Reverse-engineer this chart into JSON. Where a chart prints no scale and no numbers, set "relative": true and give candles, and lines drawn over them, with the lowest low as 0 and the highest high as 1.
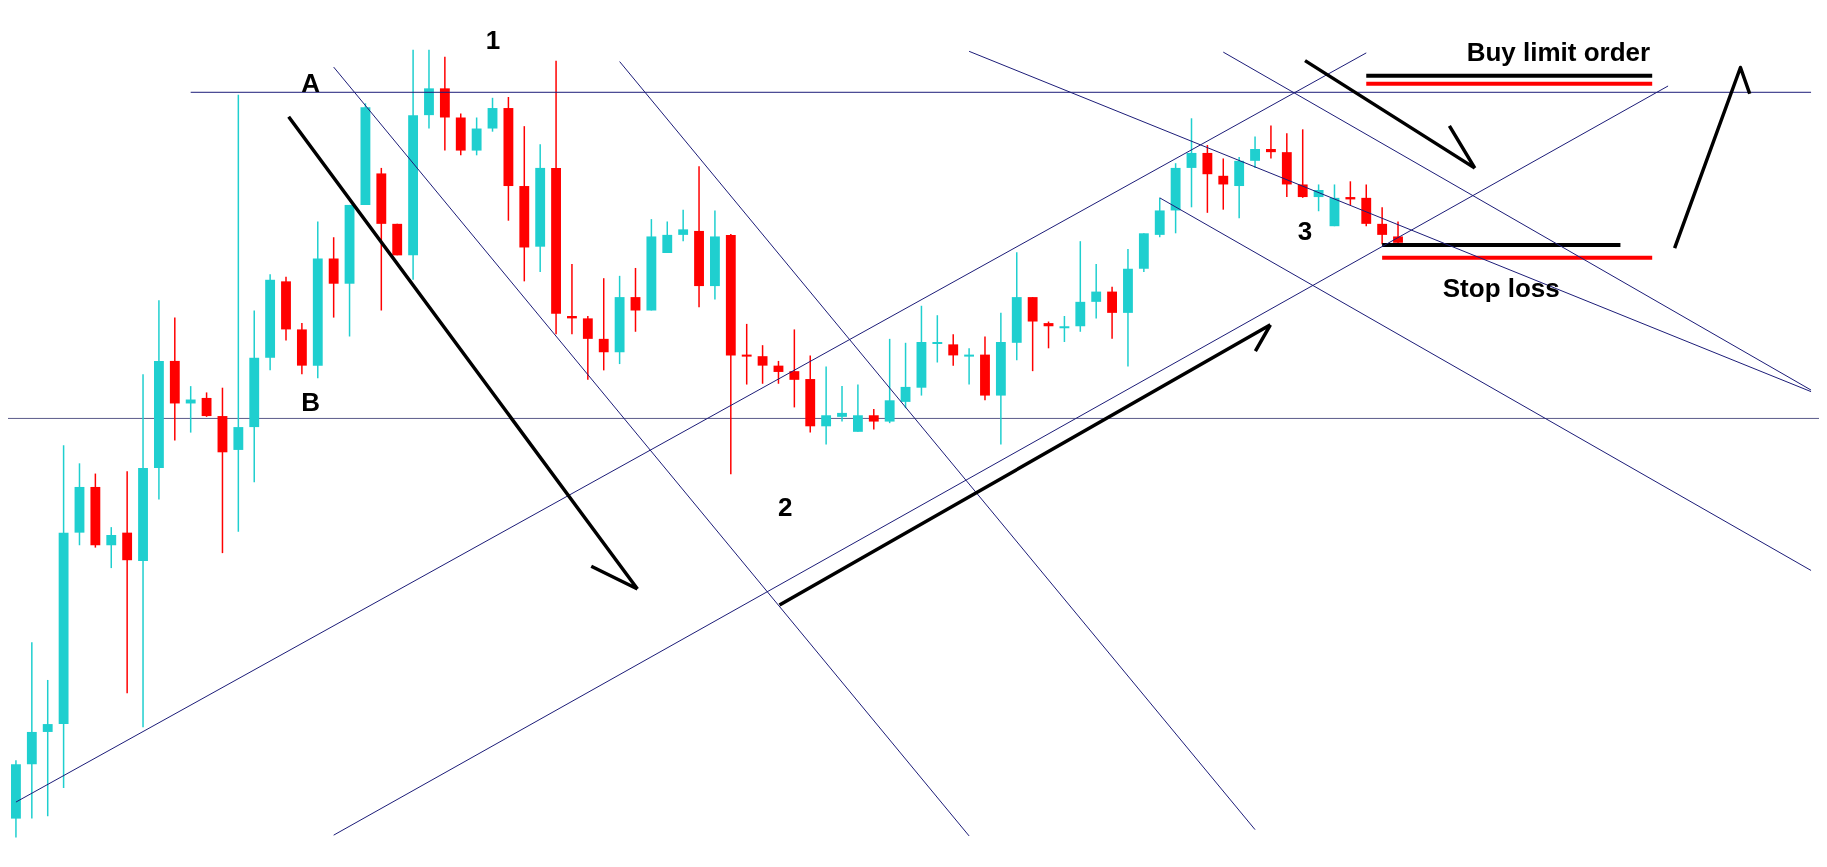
{
  "chart_data": {
    "type": "candlestick",
    "relative": true,
    "categories": [
      null,
      null,
      null,
      null,
      null,
      null,
      null,
      null,
      null,
      null,
      null,
      null,
      null,
      null,
      null,
      null,
      null,
      null,
      null,
      null,
      null,
      null,
      null,
      null,
      null,
      null,
      null,
      null,
      null,
      null,
      null,
      null,
      null,
      null,
      null,
      null,
      null,
      null,
      null,
      null,
      null,
      null,
      null,
      null,
      null,
      null,
      null,
      null,
      null,
      null,
      null,
      null,
      null,
      null,
      null,
      null,
      null,
      null,
      null,
      null,
      null,
      null,
      null,
      null,
      null,
      null,
      null,
      null,
      null,
      null,
      null,
      null,
      null,
      null,
      null,
      null,
      null,
      null,
      null,
      null,
      null,
      null,
      null,
      null,
      null,
      null,
      null,
      null,
      null,
      null,
      null,
      null,
      null,
      null,
      null,
      null,
      null,
      null,
      null,
      null,
      null,
      null,
      null,
      null,
      null,
      null,
      null,
      null,
      null,
      null,
      null,
      null,
      null,
      null
    ],
    "ohlc": [
      [
        0.024,
        0.098,
        0,
        0.093
      ],
      [
        0.093,
        0.248,
        0.024,
        0.134
      ],
      [
        0.134,
        0.2,
        0.027,
        0.144
      ],
      [
        0.144,
        0.498,
        0.063,
        0.387
      ],
      [
        0.387,
        0.475,
        0.371,
        0.445
      ],
      [
        0.445,
        0.462,
        0.368,
        0.371
      ],
      [
        0.371,
        0.394,
        0.342,
        0.384
      ],
      [
        0.387,
        0.465,
        0.183,
        0.352
      ],
      [
        0.351,
        0.588,
        0.14,
        0.469
      ],
      [
        0.469,
        0.682,
        0.429,
        0.605
      ],
      [
        0.605,
        0.66,
        0.504,
        0.551
      ],
      [
        0.551,
        0.573,
        0.514,
        0.556
      ],
      [
        0.558,
        0.565,
        0.534,
        0.535
      ],
      [
        0.535,
        0.571,
        0.361,
        0.489
      ],
      [
        0.492,
        0.943,
        0.388,
        0.521
      ],
      [
        0.521,
        0.669,
        0.451,
        0.609
      ],
      [
        0.609,
        0.715,
        0.593,
        0.708
      ],
      [
        0.706,
        0.712,
        0.631,
        0.645
      ],
      [
        0.645,
        0.653,
        0.588,
        0.599
      ],
      [
        0.599,
        0.782,
        0.583,
        0.735
      ],
      [
        0.735,
        0.762,
        0.66,
        0.703
      ],
      [
        0.703,
        0.803,
        0.636,
        0.803
      ],
      [
        0.803,
        0.932,
        0.803,
        0.927
      ],
      [
        0.843,
        0.85,
        0.669,
        0.779
      ],
      [
        0.779,
        0.779,
        0.739,
        0.739
      ],
      [
        0.739,
        1,
        0.708,
        0.917
      ],
      [
        0.917,
        1,
        0.9,
        0.951
      ],
      [
        0.951,
        0.991,
        0.872,
        0.914
      ],
      [
        0.914,
        0.919,
        0.866,
        0.872
      ],
      [
        0.872,
        0.914,
        0.866,
        0.9
      ],
      [
        0.9,
        0.939,
        0.896,
        0.926
      ],
      [
        0.926,
        0.94,
        0.783,
        0.827
      ],
      [
        0.827,
        0.903,
        0.706,
        0.749
      ],
      [
        0.75,
        0.88,
        0.718,
        0.85
      ],
      [
        0.85,
        0.986,
        0.639,
        0.665
      ],
      [
        0.662,
        0.728,
        0.639,
        0.659
      ],
      [
        0.659,
        0.662,
        0.581,
        0.633
      ],
      [
        0.633,
        0.71,
        0.593,
        0.616
      ],
      [
        0.616,
        0.713,
        0.601,
        0.686
      ],
      [
        0.686,
        0.723,
        0.642,
        0.669
      ],
      [
        0.669,
        0.785,
        0.669,
        0.763
      ],
      [
        0.742,
        0.782,
        0.742,
        0.765
      ],
      [
        0.765,
        0.797,
        0.757,
        0.772
      ],
      [
        0.77,
        0.852,
        0.673,
        0.7
      ],
      [
        0.7,
        0.796,
        0.683,
        0.763
      ],
      [
        0.765,
        0.766,
        0.461,
        0.612
      ],
      [
        0.613,
        0.652,
        0.575,
        0.612
      ],
      [
        0.611,
        0.625,
        0.576,
        0.599
      ],
      [
        0.599,
        0.605,
        0.576,
        0.591
      ],
      [
        0.592,
        0.645,
        0.546,
        0.581
      ],
      [
        0.582,
        0.612,
        0.514,
        0.522
      ],
      [
        0.522,
        0.598,
        0.499,
        0.536
      ],
      [
        0.534,
        0.573,
        0.528,
        0.539
      ],
      [
        0.515,
        0.575,
        0.515,
        0.536
      ],
      [
        0.536,
        0.544,
        0.518,
        0.528
      ],
      [
        0.528,
        0.633,
        0.526,
        0.555
      ],
      [
        0.553,
        0.628,
        0.545,
        0.572
      ],
      [
        0.571,
        0.675,
        0.561,
        0.629
      ],
      [
        0.628,
        0.663,
        0.603,
        0.629
      ],
      [
        0.626,
        0.639,
        0.599,
        0.612
      ],
      [
        0.611,
        0.621,
        0.575,
        0.613
      ],
      [
        0.613,
        0.636,
        0.555,
        0.561
      ],
      [
        0.561,
        0.666,
        0.499,
        0.629
      ],
      [
        0.628,
        0.743,
        0.606,
        0.686
      ],
      [
        0.686,
        0.686,
        0.592,
        0.655
      ],
      [
        0.653,
        0.655,
        0.621,
        0.649
      ],
      [
        0.648,
        0.662,
        0.629,
        0.649
      ],
      [
        0.649,
        0.757,
        0.642,
        0.68
      ],
      [
        0.68,
        0.728,
        0.659,
        0.693
      ],
      [
        0.693,
        0.699,
        0.633,
        0.666
      ],
      [
        0.666,
        0.747,
        0.598,
        0.722
      ],
      [
        0.722,
        0.767,
        0.718,
        0.767
      ],
      [
        0.765,
        0.812,
        0.762,
        0.796
      ],
      [
        0.796,
        0.856,
        0.767,
        0.85
      ],
      [
        0.85,
        0.913,
        0.8,
        0.869
      ],
      [
        0.869,
        0.879,
        0.793,
        0.842
      ],
      [
        0.84,
        0.862,
        0.797,
        0.829
      ],
      [
        0.827,
        0.864,
        0.786,
        0.859
      ],
      [
        0.859,
        0.89,
        0.85,
        0.874
      ],
      [
        0.874,
        0.904,
        0.862,
        0.87
      ],
      [
        0.87,
        0.894,
        0.813,
        0.829
      ],
      [
        0.829,
        0.899,
        0.812,
        0.813
      ],
      [
        0.813,
        0.829,
        0.795,
        0.822
      ],
      [
        0.776,
        0.829,
        0.776,
        0.812
      ],
      [
        0.813,
        0.833,
        0.803,
        0.81
      ],
      [
        0.812,
        0.829,
        0.776,
        0.779
      ],
      [
        0.779,
        0.8,
        0.753,
        0.765
      ],
      [
        0.763,
        0.782,
        0.753,
        0.755
      ],
      null,
      null,
      null,
      null,
      null,
      null,
      null,
      null,
      null,
      null,
      null,
      null,
      null,
      null,
      null,
      null,
      null,
      null,
      null,
      null,
      null,
      null,
      null,
      null,
      null,
      null
    ],
    "colors": [
      "#1fcfcf",
      "#1fcfcf",
      "#1fcfcf",
      "#1fcfcf",
      "#1fcfcf",
      "#ff0000",
      "#1fcfcf",
      "#ff0000",
      "#1fcfcf",
      "#1fcfcf",
      "#ff0000",
      "#1fcfcf",
      "#ff0000",
      "#ff0000",
      "#1fcfcf",
      "#1fcfcf",
      "#1fcfcf",
      "#ff0000",
      "#ff0000",
      "#1fcfcf",
      "#ff0000",
      "#1fcfcf",
      "#1fcfcf",
      "#ff0000",
      "#ff0000",
      "#1fcfcf",
      "#1fcfcf",
      "#ff0000",
      "#ff0000",
      "#1fcfcf",
      "#1fcfcf",
      "#ff0000",
      "#ff0000",
      "#1fcfcf",
      "#ff0000",
      "#ff0000",
      "#ff0000",
      "#ff0000",
      "#1fcfcf",
      "#ff0000",
      "#1fcfcf",
      "#1fcfcf",
      "#1fcfcf",
      "#ff0000",
      "#1fcfcf",
      "#ff0000",
      "#ff0000",
      "#ff0000",
      "#ff0000",
      "#ff0000",
      "#ff0000",
      "#1fcfcf",
      "#1fcfcf",
      "#1fcfcf",
      "#ff0000",
      "#1fcfcf",
      "#1fcfcf",
      "#1fcfcf",
      "#1fcfcf",
      "#ff0000",
      "#1fcfcf",
      "#ff0000",
      "#1fcfcf",
      "#1fcfcf",
      "#ff0000",
      "#ff0000",
      "#1fcfcf",
      "#1fcfcf",
      "#1fcfcf",
      "#ff0000",
      "#1fcfcf",
      "#1fcfcf",
      "#1fcfcf",
      "#1fcfcf",
      "#1fcfcf",
      "#ff0000",
      "#ff0000",
      "#1fcfcf",
      "#1fcfcf",
      "#ff0000",
      "#ff0000",
      "#ff0000",
      "#1fcfcf",
      "#1fcfcf",
      "#ff0000",
      "#ff0000",
      "#ff0000",
      "#ff0000",
      null,
      null,
      null,
      null,
      null,
      null,
      null,
      null,
      null,
      null,
      null,
      null,
      null,
      null,
      null,
      null,
      null,
      null,
      null,
      null,
      null,
      null,
      null,
      null,
      null,
      null
    ],
    "ref_lines": [
      {
        "axis": "y",
        "value": 0.532,
        "color": "#5a5a8a"
      }
    ],
    "series": [
      {
        "type": "line",
        "color": "#1c1c78",
        "values": [
          null,
          null,
          null,
          null,
          null,
          null,
          null,
          null,
          null,
          null,
          null,
          0.946,
          null,
          null,
          null,
          null,
          null,
          null,
          null,
          null,
          null,
          null,
          null,
          null,
          null,
          null,
          null,
          null,
          null,
          null,
          null,
          null,
          null,
          null,
          null,
          null,
          null,
          null,
          null,
          null,
          null,
          null,
          null,
          null,
          null,
          null,
          null,
          null,
          null,
          null,
          null,
          null,
          null,
          null,
          null,
          null,
          null,
          null,
          null,
          null,
          null,
          null,
          null,
          null,
          null,
          null,
          null,
          null,
          null,
          null,
          null,
          null,
          null,
          null,
          null,
          null,
          null,
          null,
          null,
          null,
          null,
          null,
          null,
          null,
          null,
          null,
          null,
          null,
          null,
          null,
          null,
          null,
          null,
          null,
          null,
          null,
          null,
          null,
          null,
          null,
          null,
          null,
          null,
          null,
          null,
          null,
          null,
          null,
          null,
          null,
          null,
          null,
          null,
          0.946
        ]
      },
      {
        "type": "line",
        "color": "#1c1c78",
        "values": [
          0.045,
          null,
          null,
          null,
          null,
          null,
          null,
          null,
          null,
          null,
          null,
          null,
          null,
          null,
          null,
          null,
          null,
          null,
          null,
          null,
          null,
          null,
          null,
          null,
          null,
          null,
          null,
          null,
          null,
          null,
          null,
          null,
          null,
          null,
          null,
          null,
          null,
          null,
          null,
          null,
          null,
          null,
          null,
          null,
          null,
          null,
          null,
          null,
          null,
          null,
          null,
          null,
          null,
          null,
          null,
          null,
          null,
          null,
          null,
          null,
          null,
          null,
          null,
          null,
          null,
          null,
          null,
          null,
          null,
          null,
          null,
          null,
          null,
          null,
          null,
          null,
          null,
          null,
          null,
          null,
          null,
          null,
          null,
          null,
          null,
          0.996,
          null,
          null,
          null,
          null,
          null,
          null,
          null,
          null,
          null,
          null,
          null,
          null,
          null,
          null,
          null,
          null,
          null,
          null,
          null,
          null,
          null,
          null,
          null,
          null,
          null,
          null,
          null,
          null
        ]
      },
      {
        "type": "line",
        "color": "#1c1c78",
        "values": [
          null,
          null,
          null,
          null,
          null,
          null,
          null,
          null,
          null,
          null,
          null,
          null,
          null,
          null,
          null,
          null,
          null,
          null,
          null,
          null,
          0.003,
          null,
          null,
          null,
          null,
          null,
          null,
          null,
          null,
          null,
          null,
          null,
          null,
          null,
          null,
          null,
          null,
          null,
          null,
          null,
          null,
          null,
          null,
          null,
          null,
          null,
          null,
          null,
          null,
          null,
          null,
          null,
          null,
          null,
          null,
          null,
          null,
          null,
          null,
          null,
          null,
          null,
          null,
          null,
          null,
          null,
          null,
          null,
          null,
          null,
          null,
          null,
          null,
          null,
          null,
          null,
          null,
          null,
          null,
          null,
          null,
          null,
          null,
          null,
          null,
          null,
          null,
          null,
          null,
          null,
          null,
          null,
          null,
          null,
          null,
          null,
          null,
          null,
          null,
          null,
          null,
          null,
          null,
          null,
          0.954,
          null,
          null,
          null,
          null,
          null,
          null,
          null,
          null,
          null
        ]
      },
      {
        "type": "line",
        "color": "#1c1c78",
        "values": [
          null,
          null,
          null,
          null,
          null,
          null,
          null,
          null,
          null,
          null,
          null,
          null,
          null,
          null,
          null,
          null,
          null,
          null,
          null,
          null,
          0.978,
          null,
          null,
          null,
          null,
          null,
          null,
          null,
          null,
          null,
          null,
          null,
          null,
          null,
          null,
          null,
          null,
          null,
          null,
          null,
          null,
          null,
          null,
          null,
          null,
          null,
          null,
          null,
          null,
          null,
          null,
          null,
          null,
          null,
          null,
          null,
          null,
          null,
          null,
          null,
          0.002,
          null,
          null,
          null,
          null,
          null,
          null,
          null,
          null,
          null,
          null,
          null,
          null,
          null,
          null,
          null,
          null,
          null,
          null,
          null,
          null,
          null,
          null,
          null,
          null,
          null,
          null,
          null,
          null,
          null,
          null,
          null,
          null,
          null,
          null,
          null,
          null,
          null,
          null,
          null,
          null,
          null,
          null,
          null,
          null,
          null,
          null,
          null,
          null,
          null,
          null,
          null,
          null,
          null
        ]
      },
      {
        "type": "line",
        "color": "#1c1c78",
        "values": [
          null,
          null,
          null,
          null,
          null,
          null,
          null,
          null,
          null,
          null,
          null,
          null,
          null,
          null,
          null,
          null,
          null,
          null,
          null,
          null,
          null,
          null,
          null,
          null,
          null,
          null,
          null,
          null,
          null,
          null,
          null,
          null,
          null,
          null,
          null,
          null,
          null,
          null,
          0.985,
          null,
          null,
          null,
          null,
          null,
          null,
          null,
          null,
          null,
          null,
          null,
          null,
          null,
          null,
          null,
          null,
          null,
          null,
          null,
          null,
          null,
          null,
          null,
          null,
          null,
          null,
          null,
          null,
          null,
          null,
          null,
          null,
          null,
          null,
          null,
          null,
          null,
          null,
          null,
          0.01,
          null,
          null,
          null,
          null,
          null,
          null,
          null,
          null,
          null,
          null,
          null,
          null,
          null,
          null,
          null,
          null,
          null,
          null,
          null,
          null,
          null,
          null,
          null,
          null,
          null,
          null,
          null,
          null,
          null,
          null,
          null,
          null,
          null,
          null,
          null
        ]
      },
      {
        "type": "line",
        "color": "#1c1c78",
        "values": [
          null,
          null,
          null,
          null,
          null,
          null,
          null,
          null,
          null,
          null,
          null,
          null,
          null,
          null,
          null,
          null,
          null,
          null,
          null,
          null,
          null,
          null,
          null,
          null,
          null,
          null,
          null,
          null,
          null,
          null,
          null,
          null,
          null,
          null,
          null,
          null,
          null,
          null,
          null,
          null,
          null,
          null,
          null,
          null,
          null,
          null,
          null,
          null,
          null,
          null,
          null,
          null,
          null,
          null,
          null,
          null,
          null,
          null,
          null,
          null,
          0.998,
          null,
          null,
          null,
          null,
          null,
          null,
          null,
          null,
          null,
          null,
          null,
          null,
          null,
          null,
          null,
          null,
          null,
          null,
          null,
          null,
          null,
          null,
          null,
          null,
          null,
          null,
          null,
          null,
          null,
          null,
          null,
          null,
          null,
          null,
          null,
          null,
          null,
          null,
          null,
          null,
          null,
          null,
          null,
          null,
          null,
          null,
          null,
          null,
          null,
          null,
          null,
          null,
          0.566
        ]
      },
      {
        "type": "line",
        "color": "#1c1c78",
        "values": [
          null,
          null,
          null,
          null,
          null,
          null,
          null,
          null,
          null,
          null,
          null,
          null,
          null,
          null,
          null,
          null,
          null,
          null,
          null,
          null,
          null,
          null,
          null,
          null,
          null,
          null,
          null,
          null,
          null,
          null,
          null,
          null,
          null,
          null,
          null,
          null,
          null,
          null,
          null,
          null,
          null,
          null,
          null,
          null,
          null,
          null,
          null,
          null,
          null,
          null,
          null,
          null,
          null,
          null,
          null,
          null,
          null,
          null,
          null,
          null,
          null,
          null,
          null,
          null,
          null,
          null,
          null,
          null,
          null,
          null,
          null,
          null,
          0.812,
          null,
          null,
          null,
          null,
          null,
          null,
          null,
          null,
          null,
          null,
          null,
          null,
          null,
          null,
          null,
          null,
          null,
          null,
          null,
          null,
          null,
          null,
          null,
          null,
          null,
          null,
          null,
          null,
          null,
          null,
          null,
          null,
          null,
          null,
          null,
          null,
          null,
          null,
          null,
          null,
          0.339
        ]
      },
      {
        "type": "line",
        "color": "#1c1c78",
        "values": [
          null,
          null,
          null,
          null,
          null,
          null,
          null,
          null,
          null,
          null,
          null,
          null,
          null,
          null,
          null,
          null,
          null,
          null,
          null,
          null,
          null,
          null,
          null,
          null,
          null,
          null,
          null,
          null,
          null,
          null,
          null,
          null,
          null,
          null,
          null,
          null,
          null,
          null,
          null,
          null,
          null,
          null,
          null,
          null,
          null,
          null,
          null,
          null,
          null,
          null,
          null,
          null,
          null,
          null,
          null,
          null,
          null,
          null,
          null,
          null,
          null,
          null,
          null,
          null,
          null,
          null,
          null,
          null,
          null,
          null,
          null,
          null,
          null,
          null,
          null,
          null,
          0.997,
          null,
          null,
          null,
          null,
          null,
          null,
          null,
          null,
          null,
          null,
          null,
          null,
          null,
          null,
          null,
          null,
          null,
          null,
          null,
          null,
          null,
          null,
          null,
          null,
          null,
          null,
          null,
          null,
          null,
          null,
          null,
          null,
          null,
          null,
          null,
          null,
          0.568
        ]
      },
      {
        "type": "line",
        "name": "Buy limit order",
        "color": "#000000",
        "values": [
          null,
          null,
          null,
          null,
          null,
          null,
          null,
          null,
          null,
          null,
          null,
          null,
          null,
          null,
          null,
          null,
          null,
          null,
          null,
          null,
          null,
          null,
          null,
          null,
          null,
          null,
          null,
          null,
          null,
          null,
          null,
          null,
          null,
          null,
          null,
          null,
          null,
          null,
          null,
          null,
          null,
          null,
          null,
          null,
          null,
          null,
          null,
          null,
          null,
          null,
          null,
          null,
          null,
          null,
          null,
          null,
          null,
          null,
          null,
          null,
          null,
          null,
          null,
          null,
          null,
          null,
          null,
          null,
          null,
          null,
          null,
          null,
          null,
          null,
          null,
          null,
          null,
          null,
          null,
          null,
          null,
          null,
          null,
          null,
          null,
          0.967,
          null,
          null,
          null,
          null,
          null,
          null,
          null,
          null,
          null,
          null,
          null,
          null,
          null,
          null,
          null,
          null,
          null,
          0.967,
          null,
          null,
          null,
          null,
          null,
          null,
          null,
          null,
          null,
          null
        ]
      },
      {
        "type": "line",
        "color": "#ff0000",
        "values": [
          null,
          null,
          null,
          null,
          null,
          null,
          null,
          null,
          null,
          null,
          null,
          null,
          null,
          null,
          null,
          null,
          null,
          null,
          null,
          null,
          null,
          null,
          null,
          null,
          null,
          null,
          null,
          null,
          null,
          null,
          null,
          null,
          null,
          null,
          null,
          null,
          null,
          null,
          null,
          null,
          null,
          null,
          null,
          null,
          null,
          null,
          null,
          null,
          null,
          null,
          null,
          null,
          null,
          null,
          null,
          null,
          null,
          null,
          null,
          null,
          null,
          null,
          null,
          null,
          null,
          null,
          null,
          null,
          null,
          null,
          null,
          null,
          null,
          null,
          null,
          null,
          null,
          null,
          null,
          null,
          null,
          null,
          null,
          null,
          null,
          0.957,
          null,
          null,
          null,
          null,
          null,
          null,
          null,
          null,
          null,
          null,
          null,
          null,
          null,
          null,
          null,
          null,
          null,
          0.957,
          null,
          null,
          null,
          null,
          null,
          null,
          null,
          null,
          null,
          null
        ]
      },
      {
        "type": "line",
        "name": "Stop loss",
        "color": "#000000",
        "values": [
          null,
          null,
          null,
          null,
          null,
          null,
          null,
          null,
          null,
          null,
          null,
          null,
          null,
          null,
          null,
          null,
          null,
          null,
          null,
          null,
          null,
          null,
          null,
          null,
          null,
          null,
          null,
          null,
          null,
          null,
          null,
          null,
          null,
          null,
          null,
          null,
          null,
          null,
          null,
          null,
          null,
          null,
          null,
          null,
          null,
          null,
          null,
          null,
          null,
          null,
          null,
          null,
          null,
          null,
          null,
          null,
          null,
          null,
          null,
          null,
          null,
          null,
          null,
          null,
          null,
          null,
          null,
          null,
          null,
          null,
          null,
          null,
          null,
          null,
          null,
          null,
          null,
          null,
          null,
          null,
          null,
          null,
          null,
          null,
          null,
          null,
          0.752,
          null,
          null,
          null,
          null,
          null,
          null,
          null,
          null,
          null,
          null,
          null,
          null,
          null,
          null,
          0.752,
          null,
          null,
          null,
          null,
          null,
          null,
          null,
          null,
          null,
          null,
          null,
          null
        ]
      },
      {
        "type": "line",
        "color": "#ff0000",
        "values": [
          null,
          null,
          null,
          null,
          null,
          null,
          null,
          null,
          null,
          null,
          null,
          null,
          null,
          null,
          null,
          null,
          null,
          null,
          null,
          null,
          null,
          null,
          null,
          null,
          null,
          null,
          null,
          null,
          null,
          null,
          null,
          null,
          null,
          null,
          null,
          null,
          null,
          null,
          null,
          null,
          null,
          null,
          null,
          null,
          null,
          null,
          null,
          null,
          null,
          null,
          null,
          null,
          null,
          null,
          null,
          null,
          null,
          null,
          null,
          null,
          null,
          null,
          null,
          null,
          null,
          null,
          null,
          null,
          null,
          null,
          null,
          null,
          null,
          null,
          null,
          null,
          null,
          null,
          null,
          null,
          null,
          null,
          null,
          null,
          null,
          null,
          0.736,
          null,
          null,
          null,
          null,
          null,
          null,
          null,
          null,
          null,
          null,
          null,
          null,
          null,
          null,
          null,
          null,
          0.736,
          null,
          null,
          null,
          null,
          null,
          null,
          null,
          null,
          null,
          null
        ]
      }
    ],
    "annotations": [
      "A",
      "B",
      "1",
      "2",
      "3"
    ]
  }
}
